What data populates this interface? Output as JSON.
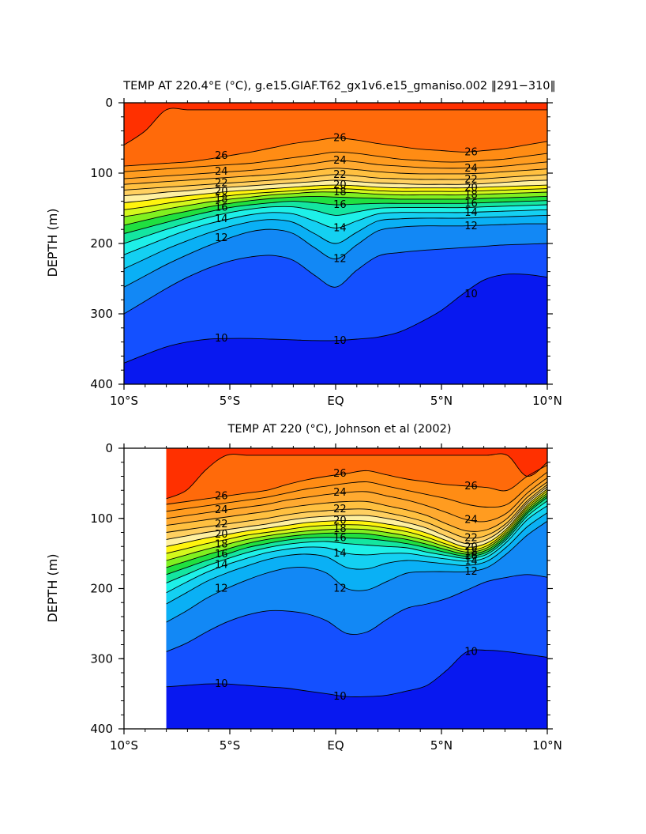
{
  "chart_data": [
    {
      "type": "heatmap",
      "subtype": "filled-contour",
      "title": "TEMP AT 220.4°E (°C), g.e15.GIAF.T62_gx1v6.e15_gmaniso.002 ‖291−310‖",
      "xlabel": "",
      "ylabel": "DEPTH (m)",
      "xlim": [
        -10,
        10
      ],
      "ylim": [
        400,
        0
      ],
      "x_ticks": [
        "10°S",
        "5°S",
        "EQ",
        "5°N",
        "10°N"
      ],
      "y_ticks": [
        "0",
        "100",
        "200",
        "300",
        "400"
      ],
      "x_range": [
        -10,
        10
      ],
      "grid": false,
      "contour_levels": [
        10,
        11,
        12,
        13,
        14,
        15,
        16,
        17,
        18,
        19,
        20,
        21,
        22,
        23,
        24,
        25,
        26,
        27
      ],
      "contour_labels": [
        "26",
        "26",
        "26",
        "24",
        "24",
        "24",
        "22",
        "22",
        "22",
        "20",
        "20",
        "20",
        "18",
        "18",
        "18",
        "16",
        "16",
        "16",
        "14",
        "14",
        "14",
        "12",
        "12",
        "12",
        "10",
        "10",
        "10"
      ],
      "isotherms": [
        {
          "level": 27,
          "depth": [
            60,
            40,
            10,
            10,
            10,
            10,
            10,
            10,
            10,
            10,
            10,
            10,
            10,
            10,
            10,
            10,
            10,
            10,
            10,
            10,
            10
          ]
        },
        {
          "level": 26,
          "depth": [
            90,
            88,
            86,
            84,
            80,
            75,
            70,
            64,
            58,
            54,
            50,
            53,
            58,
            62,
            66,
            68,
            70,
            68,
            65,
            60,
            55
          ]
        },
        {
          "level": 25,
          "depth": [
            98,
            96,
            94,
            92,
            90,
            88,
            86,
            82,
            78,
            74,
            70,
            72,
            76,
            80,
            82,
            84,
            84,
            82,
            80,
            76,
            72
          ]
        },
        {
          "level": 24,
          "depth": [
            108,
            106,
            104,
            102,
            100,
            98,
            96,
            93,
            90,
            86,
            82,
            84,
            88,
            90,
            92,
            93,
            93,
            92,
            90,
            87,
            84
          ]
        },
        {
          "level": 23,
          "depth": [
            116,
            114,
            112,
            110,
            108,
            106,
            104,
            102,
            99,
            96,
            93,
            95,
            98,
            100,
            101,
            101,
            101,
            100,
            98,
            96,
            94
          ]
        },
        {
          "level": 22,
          "depth": [
            124,
            122,
            120,
            118,
            116,
            114,
            112,
            110,
            108,
            105,
            102,
            104,
            107,
            108,
            109,
            109,
            109,
            108,
            106,
            104,
            102
          ]
        },
        {
          "level": 21,
          "depth": [
            132,
            130,
            127,
            125,
            122,
            120,
            118,
            116,
            114,
            112,
            110,
            112,
            114,
            115,
            116,
            116,
            116,
            115,
            113,
            111,
            110
          ]
        },
        {
          "level": 20,
          "depth": [
            142,
            139,
            135,
            132,
            129,
            126,
            124,
            122,
            120,
            118,
            117,
            118,
            120,
            121,
            121,
            121,
            121,
            120,
            119,
            118,
            117
          ]
        },
        {
          "level": 19,
          "depth": [
            152,
            148,
            143,
            139,
            135,
            132,
            129,
            127,
            125,
            123,
            122,
            123,
            125,
            126,
            126,
            126,
            126,
            125,
            124,
            123,
            122
          ]
        },
        {
          "level": 18,
          "depth": [
            162,
            157,
            151,
            146,
            141,
            137,
            134,
            131,
            129,
            127,
            127,
            128,
            130,
            131,
            131,
            131,
            131,
            130,
            129,
            128,
            127
          ]
        },
        {
          "level": 17,
          "depth": [
            174,
            167,
            160,
            154,
            148,
            143,
            139,
            136,
            134,
            133,
            134,
            135,
            136,
            137,
            137,
            137,
            137,
            136,
            135,
            134,
            133
          ]
        },
        {
          "level": 16,
          "depth": [
            186,
            178,
            170,
            162,
            155,
            149,
            145,
            142,
            140,
            142,
            145,
            144,
            143,
            143,
            143,
            143,
            143,
            142,
            141,
            140,
            139
          ]
        },
        {
          "level": 15,
          "depth": [
            200,
            190,
            180,
            171,
            163,
            156,
            151,
            148,
            148,
            153,
            160,
            155,
            150,
            149,
            149,
            149,
            149,
            148,
            147,
            146,
            145
          ]
        },
        {
          "level": 14,
          "depth": [
            216,
            204,
            192,
            181,
            172,
            165,
            159,
            156,
            158,
            168,
            178,
            168,
            158,
            156,
            156,
            156,
            156,
            155,
            154,
            153,
            152
          ]
        },
        {
          "level": 13,
          "depth": [
            236,
            222,
            208,
            196,
            185,
            176,
            169,
            166,
            170,
            186,
            200,
            184,
            168,
            165,
            164,
            164,
            164,
            163,
            162,
            161,
            160
          ]
        },
        {
          "level": 12,
          "depth": [
            262,
            246,
            230,
            216,
            203,
            192,
            183,
            180,
            186,
            206,
            222,
            202,
            182,
            177,
            175,
            175,
            175,
            174,
            173,
            172,
            172
          ]
        },
        {
          "level": 11,
          "depth": [
            300,
            282,
            264,
            248,
            235,
            225,
            219,
            217,
            224,
            245,
            262,
            238,
            218,
            213,
            210,
            208,
            206,
            204,
            202,
            201,
            200
          ]
        },
        {
          "level": 10,
          "depth": [
            370,
            358,
            347,
            340,
            336,
            335,
            335,
            336,
            337,
            338,
            338,
            336,
            333,
            326,
            312,
            295,
            272,
            252,
            244,
            244,
            248
          ]
        }
      ]
    },
    {
      "type": "heatmap",
      "subtype": "filled-contour",
      "title": "TEMP AT 220 (°C), Johnson et al (2002)",
      "xlabel": "",
      "ylabel": "DEPTH (m)",
      "xlim": [
        -10,
        10
      ],
      "ylim": [
        400,
        0
      ],
      "x_ticks": [
        "10°S",
        "5°S",
        "EQ",
        "5°N",
        "10°N"
      ],
      "y_ticks": [
        "0",
        "100",
        "200",
        "300",
        "400"
      ],
      "x_range": [
        -8,
        10
      ],
      "grid": false,
      "contour_levels": [
        10,
        11,
        12,
        13,
        14,
        15,
        16,
        17,
        18,
        19,
        20,
        21,
        22,
        23,
        24,
        25,
        26,
        27
      ],
      "contour_labels": [
        "26",
        "26",
        "26",
        "24",
        "24",
        "24",
        "22",
        "22",
        "22",
        "20",
        "20",
        "20",
        "18",
        "18",
        "18",
        "16",
        "16",
        "16",
        "14",
        "14",
        "14",
        "12",
        "12",
        "12",
        "10",
        "10",
        "10"
      ],
      "isotherms": [
        {
          "level": 27,
          "depth": [
            72,
            60,
            30,
            10,
            10,
            10,
            10,
            10,
            10,
            10,
            10,
            10,
            10,
            10,
            10,
            10,
            10,
            10,
            40,
            20
          ]
        },
        {
          "level": 26,
          "depth": [
            80,
            76,
            72,
            68,
            64,
            60,
            52,
            45,
            40,
            36,
            32,
            38,
            44,
            48,
            52,
            54,
            56,
            60,
            40,
            24
          ]
        },
        {
          "level": 25,
          "depth": [
            90,
            86,
            82,
            78,
            74,
            70,
            64,
            58,
            54,
            50,
            48,
            54,
            60,
            66,
            72,
            80,
            84,
            80,
            56,
            34
          ]
        },
        {
          "level": 24,
          "depth": [
            100,
            96,
            92,
            88,
            84,
            80,
            74,
            70,
            66,
            63,
            62,
            68,
            74,
            82,
            92,
            102,
            104,
            92,
            64,
            42
          ]
        },
        {
          "level": 23,
          "depth": [
            110,
            106,
            102,
            98,
            94,
            90,
            85,
            81,
            78,
            76,
            76,
            82,
            88,
            96,
            108,
            118,
            116,
            100,
            70,
            48
          ]
        },
        {
          "level": 22,
          "depth": [
            120,
            116,
            112,
            108,
            104,
            100,
            95,
            91,
            89,
            87,
            87,
            92,
            98,
            106,
            118,
            128,
            124,
            106,
            75,
            52
          ]
        },
        {
          "level": 21,
          "depth": [
            130,
            125,
            120,
            116,
            112,
            108,
            103,
            99,
            97,
            96,
            96,
            100,
            106,
            114,
            126,
            136,
            130,
            110,
            78,
            55
          ]
        },
        {
          "level": 20,
          "depth": [
            140,
            134,
            128,
            123,
            118,
            114,
            110,
            106,
            104,
            103,
            104,
            108,
            113,
            121,
            132,
            141,
            135,
            114,
            81,
            58
          ]
        },
        {
          "level": 19,
          "depth": [
            150,
            143,
            136,
            130,
            124,
            120,
            116,
            112,
            110,
            109,
            110,
            114,
            119,
            127,
            137,
            145,
            139,
            117,
            84,
            61
          ]
        },
        {
          "level": 18,
          "depth": [
            160,
            152,
            144,
            137,
            130,
            125,
            121,
            118,
            116,
            115,
            116,
            120,
            125,
            132,
            141,
            148,
            142,
            120,
            87,
            64
          ]
        },
        {
          "level": 17,
          "depth": [
            170,
            161,
            152,
            144,
            136,
            130,
            126,
            123,
            121,
            121,
            122,
            126,
            130,
            137,
            145,
            151,
            145,
            123,
            90,
            67
          ]
        },
        {
          "level": 16,
          "depth": [
            180,
            170,
            160,
            151,
            142,
            136,
            131,
            128,
            127,
            128,
            129,
            132,
            136,
            142,
            149,
            154,
            148,
            126,
            93,
            70
          ]
        },
        {
          "level": 15,
          "depth": [
            192,
            180,
            168,
            158,
            149,
            142,
            137,
            134,
            133,
            136,
            138,
            140,
            142,
            148,
            153,
            157,
            151,
            129,
            97,
            75
          ]
        },
        {
          "level": 14,
          "depth": [
            206,
            191,
            177,
            166,
            157,
            149,
            144,
            141,
            142,
            150,
            152,
            150,
            150,
            154,
            158,
            161,
            155,
            133,
            102,
            82
          ]
        },
        {
          "level": 13,
          "depth": [
            222,
            206,
            190,
            178,
            168,
            159,
            153,
            151,
            155,
            170,
            172,
            164,
            160,
            162,
            165,
            167,
            161,
            140,
            112,
            92
          ]
        },
        {
          "level": 12,
          "depth": [
            248,
            232,
            214,
            200,
            188,
            178,
            171,
            170,
            178,
            200,
            202,
            190,
            178,
            176,
            176,
            176,
            170,
            150,
            124,
            104
          ]
        },
        {
          "level": 11,
          "depth": [
            290,
            278,
            262,
            248,
            238,
            232,
            232,
            236,
            246,
            264,
            262,
            244,
            228,
            222,
            214,
            202,
            190,
            184,
            180,
            184
          ]
        },
        {
          "level": 10,
          "depth": [
            340,
            338,
            336,
            336,
            338,
            340,
            342,
            346,
            350,
            354,
            354,
            352,
            346,
            338,
            316,
            290,
            288,
            290,
            294,
            298
          ]
        }
      ]
    }
  ]
}
